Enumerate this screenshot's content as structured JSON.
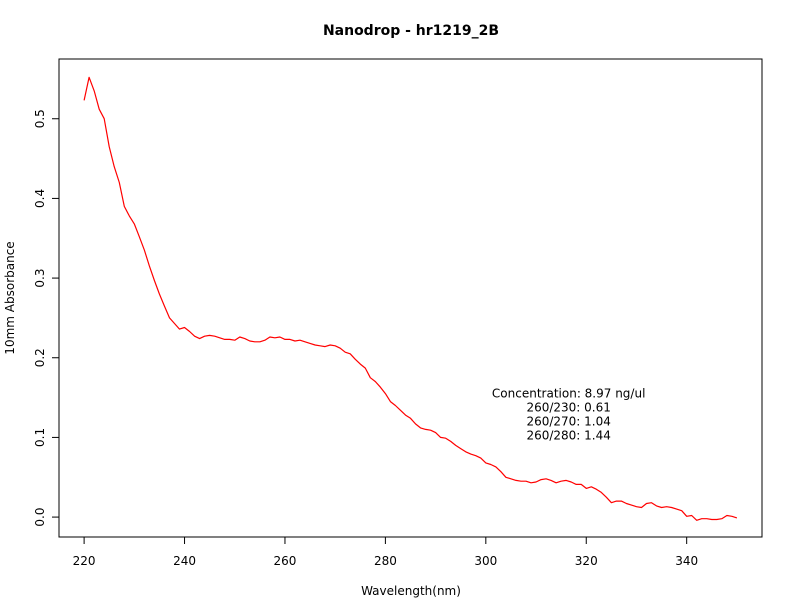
{
  "chart_data": {
    "type": "line",
    "title": "Nanodrop - hr1219_2B",
    "xlabel": "Wavelength(nm)",
    "ylabel": "10mm Absorbance",
    "xlim": [
      215,
      355
    ],
    "ylim": [
      -0.025,
      0.575
    ],
    "x_ticks": [
      220,
      240,
      260,
      280,
      300,
      320,
      340
    ],
    "x_tick_labels": [
      "220",
      "240",
      "260",
      "280",
      "300",
      "320",
      "340"
    ],
    "y_ticks": [
      0.0,
      0.1,
      0.2,
      0.3,
      0.4,
      0.5
    ],
    "y_tick_labels": [
      "0.0",
      "0.1",
      "0.2",
      "0.3",
      "0.4",
      "0.5"
    ],
    "grid": false,
    "series": [
      {
        "color": "#ff0000",
        "x": [
          220,
          221,
          222,
          223,
          224,
          225,
          226,
          227,
          228,
          229,
          230,
          231,
          232,
          233,
          234,
          235,
          236,
          237,
          238,
          239,
          240,
          241,
          242,
          243,
          244,
          245,
          246,
          247,
          248,
          249,
          250,
          251,
          252,
          253,
          254,
          255,
          256,
          257,
          258,
          259,
          260,
          261,
          262,
          263,
          264,
          265,
          266,
          267,
          268,
          269,
          270,
          271,
          272,
          273,
          274,
          275,
          276,
          277,
          278,
          279,
          280,
          281,
          282,
          283,
          284,
          285,
          286,
          287,
          288,
          289,
          290,
          291,
          292,
          293,
          294,
          295,
          296,
          297,
          298,
          299,
          300,
          301,
          302,
          303,
          304,
          305,
          306,
          307,
          308,
          309,
          310,
          311,
          312,
          313,
          314,
          315,
          316,
          317,
          318,
          319,
          320,
          321,
          322,
          323,
          324,
          325,
          326,
          327,
          328,
          329,
          330,
          331,
          332,
          333,
          334,
          335,
          336,
          337,
          338,
          339,
          340,
          341,
          342,
          343,
          344,
          345,
          346,
          347,
          348,
          349,
          350
        ],
        "y": [
          0.523,
          0.552,
          0.535,
          0.512,
          0.5,
          0.465,
          0.44,
          0.42,
          0.39,
          0.378,
          0.368,
          0.352,
          0.335,
          0.315,
          0.297,
          0.28,
          0.265,
          0.25,
          0.243,
          0.236,
          0.238,
          0.233,
          0.227,
          0.224,
          0.227,
          0.228,
          0.227,
          0.225,
          0.223,
          0.223,
          0.222,
          0.226,
          0.224,
          0.221,
          0.22,
          0.22,
          0.222,
          0.226,
          0.225,
          0.226,
          0.223,
          0.223,
          0.221,
          0.222,
          0.22,
          0.218,
          0.216,
          0.215,
          0.214,
          0.216,
          0.215,
          0.212,
          0.207,
          0.205,
          0.198,
          0.192,
          0.187,
          0.175,
          0.17,
          0.163,
          0.155,
          0.145,
          0.14,
          0.134,
          0.128,
          0.124,
          0.117,
          0.112,
          0.11,
          0.109,
          0.106,
          0.1,
          0.099,
          0.095,
          0.09,
          0.086,
          0.082,
          0.079,
          0.077,
          0.074,
          0.068,
          0.066,
          0.063,
          0.057,
          0.05,
          0.048,
          0.046,
          0.045,
          0.045,
          0.043,
          0.044,
          0.047,
          0.048,
          0.046,
          0.043,
          0.045,
          0.046,
          0.044,
          0.041,
          0.041,
          0.036,
          0.038,
          0.035,
          0.031,
          0.025,
          0.018,
          0.02,
          0.02,
          0.017,
          0.015,
          0.013,
          0.012,
          0.017,
          0.018,
          0.014,
          0.012,
          0.013,
          0.012,
          0.01,
          0.008,
          0.001,
          0.002,
          -0.004,
          -0.002,
          -0.002,
          -0.003,
          -0.003,
          -0.002,
          0.002,
          0.001,
          -0.001
        ]
      }
    ],
    "annotation": {
      "lines": [
        "Concentration: 8.97 ng/ul",
        "260/230: 0.61",
        "260/270: 1.04",
        "260/280: 1.44"
      ],
      "anchor_x": 316.5,
      "anchor_y": 0.15
    }
  }
}
